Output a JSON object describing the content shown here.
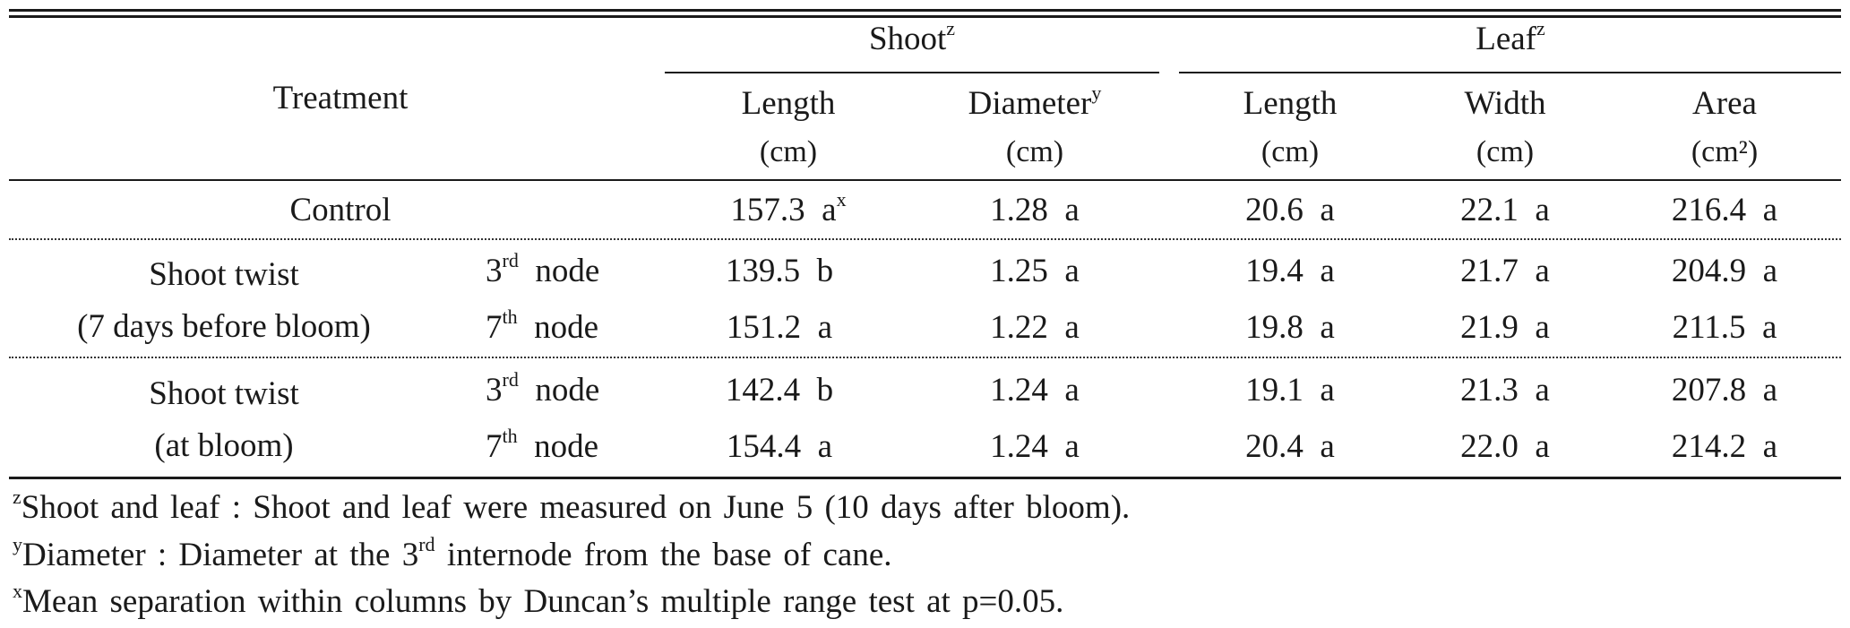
{
  "headers": {
    "treatment": "Treatment",
    "shoot": "Shoot",
    "shoot_sup": "z",
    "leaf": "Leaf",
    "leaf_sup": "z",
    "shoot_length": "Length",
    "shoot_length_unit": "(cm)",
    "shoot_diameter": "Diameter",
    "shoot_diameter_sup": "y",
    "shoot_diameter_unit": "(cm)",
    "leaf_length": "Length",
    "leaf_length_unit": "(cm)",
    "leaf_width": "Width",
    "leaf_width_unit": "(cm)",
    "leaf_area": "Area",
    "leaf_area_unit": "(cm²)"
  },
  "rows": [
    {
      "group": "Control",
      "node_num": "",
      "node_sup": "",
      "node_word": "",
      "shoot_length": "157.3  a",
      "shoot_length_sup": "x",
      "diameter": "1.28  a",
      "leaf_length": "20.6  a",
      "width": "22.1  a",
      "area": "216.4  a"
    },
    {
      "group_line1": "Shoot twist",
      "group_line2": "(7 days before bloom)",
      "sub": [
        {
          "node_num": "3",
          "node_sup": "rd",
          "node_word": "node",
          "shoot_length": "139.5  b",
          "diameter": "1.25  a",
          "leaf_length": "19.4  a",
          "width": "21.7  a",
          "area": "204.9  a"
        },
        {
          "node_num": "7",
          "node_sup": "th",
          "node_word": "node",
          "shoot_length": "151.2  a",
          "diameter": "1.22  a",
          "leaf_length": "19.8  a",
          "width": "21.9  a",
          "area": "211.5  a"
        }
      ]
    },
    {
      "group_line1": "Shoot twist",
      "group_line2": "(at bloom)",
      "sub": [
        {
          "node_num": "3",
          "node_sup": "rd",
          "node_word": "node",
          "shoot_length": "142.4  b",
          "diameter": "1.24  a",
          "leaf_length": "19.1  a",
          "width": "21.3  a",
          "area": "207.8  a"
        },
        {
          "node_num": "7",
          "node_sup": "th",
          "node_word": "node",
          "shoot_length": "154.4  a",
          "diameter": "1.24  a",
          "leaf_length": "20.4  a",
          "width": "22.0  a",
          "area": "214.2  a"
        }
      ]
    }
  ],
  "footnotes": [
    {
      "mark": "z",
      "text": "Shoot and leaf : Shoot and leaf were measured on June 5 (10 days after bloom)."
    },
    {
      "mark": "y",
      "text_before": "Diameter : Diameter at the 3",
      "text_sup": "rd",
      "text_after": " internode from the base of cane."
    },
    {
      "mark": "x",
      "text": "Mean separation within columns by Duncan’s multiple range test at p=0.05."
    }
  ]
}
